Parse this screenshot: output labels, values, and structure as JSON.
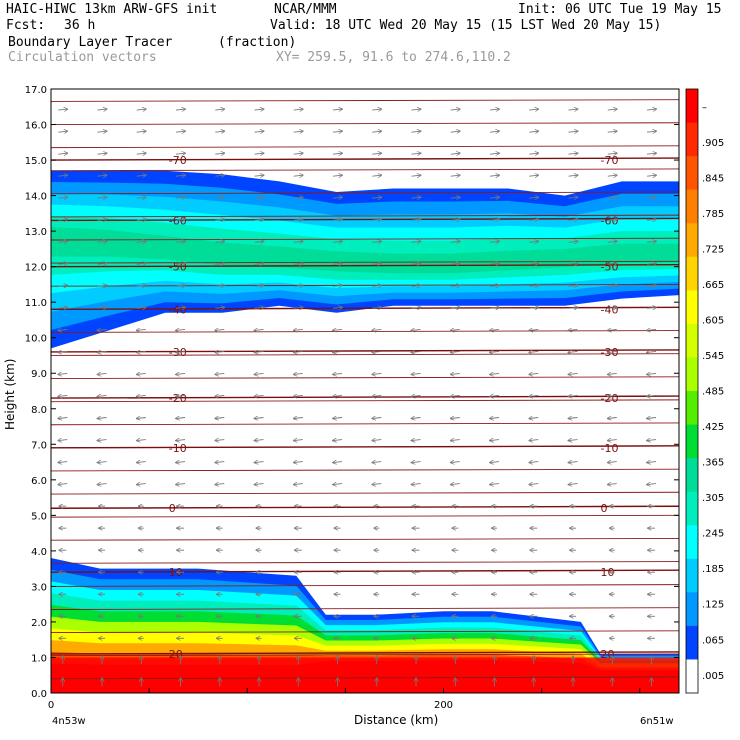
{
  "header": {
    "model": "HAIC-HIWC 13km ARW-GFS init",
    "org": "NCAR/MMM",
    "init": "Init: 06 UTC Tue 19 May 15",
    "fcst_label": "Fcst:",
    "fcst_value": "36 h",
    "valid": "Valid: 18 UTC Wed 20 May 15 (15 LST Wed 20 May 15)",
    "field_name": "Boundary Layer Tracer",
    "field_units": "(fraction)",
    "overlay": "Circulation vectors",
    "xy": "XY= 259.5, 91.6 to 274.6,110.2"
  },
  "chart_data": {
    "type": "heatmap",
    "xlabel": "Distance (km)",
    "ylabel": "Height (km)",
    "xlim": [
      0,
      320
    ],
    "ylim": [
      0,
      17
    ],
    "x_ticks": [
      {
        "value": 0,
        "label": "0"
      },
      {
        "value": 200,
        "label": "200"
      }
    ],
    "x_end_labels": {
      "left": "4n53w",
      "right": "6n51w"
    },
    "y_ticks": [
      "0.0",
      "1.0",
      "2.0",
      "3.0",
      "4.0",
      "5.0",
      "6.0",
      "7.0",
      "8.0",
      "9.0",
      "10.0",
      "11.0",
      "12.0",
      "13.0",
      "14.0",
      "15.0",
      "16.0",
      "17.0"
    ],
    "colorbar": {
      "labels": [
        "–",
        ".905",
        ".845",
        ".785",
        ".725",
        ".665",
        ".605",
        ".545",
        ".485",
        ".425",
        ".365",
        ".305",
        ".245",
        ".185",
        ".125",
        ".065",
        ".005"
      ],
      "colors": [
        "#ff0000",
        "#ff2a00",
        "#ff5500",
        "#ff8000",
        "#ffaa00",
        "#ffd400",
        "#ffff00",
        "#d4ff00",
        "#aaff00",
        "#55ee00",
        "#00dd33",
        "#00dd99",
        "#00eebb",
        "#00ffff",
        "#00ccff",
        "#0099ff",
        "#0044ff",
        "#ffffff"
      ]
    },
    "isotherms": [
      {
        "label": "-70",
        "height_km": 15.0
      },
      {
        "label": "-60",
        "height_km": 13.3
      },
      {
        "label": "-50",
        "height_km": 12.0
      },
      {
        "label": "-40",
        "height_km": 10.8
      },
      {
        "label": "-30",
        "height_km": 9.6
      },
      {
        "label": "-20",
        "height_km": 8.3
      },
      {
        "label": "-10",
        "height_km": 6.9
      },
      {
        "label": "0",
        "height_km": 5.2
      },
      {
        "label": "10",
        "height_km": 3.4
      },
      {
        "label": "20",
        "height_km": 1.1
      }
    ],
    "anvil_layer": {
      "description_km": "upper tracer layer",
      "top_km": [
        14.7,
        14.7,
        14.7,
        14.6,
        14.4,
        14.1,
        14.2,
        14.2,
        14.2,
        14.0,
        14.4,
        14.4
      ],
      "bottom_km": [
        9.7,
        10.2,
        10.7,
        10.7,
        10.9,
        10.7,
        10.9,
        10.9,
        10.9,
        10.9,
        11.1,
        11.2
      ],
      "core_km": [
        12.8,
        12.7,
        12.5,
        12.3,
        12.2,
        12.1,
        12.0,
        12.0,
        12.1,
        12.2,
        12.3,
        12.3
      ]
    },
    "boundary_layer": {
      "top_km": [
        3.8,
        3.5,
        3.5,
        3.5,
        3.4,
        3.3,
        2.2,
        2.2,
        2.3,
        2.3,
        2.0,
        1.1,
        1.1
      ],
      "x_km": [
        0,
        25,
        50,
        75,
        100,
        125,
        140,
        165,
        200,
        225,
        270,
        280,
        320
      ]
    }
  }
}
